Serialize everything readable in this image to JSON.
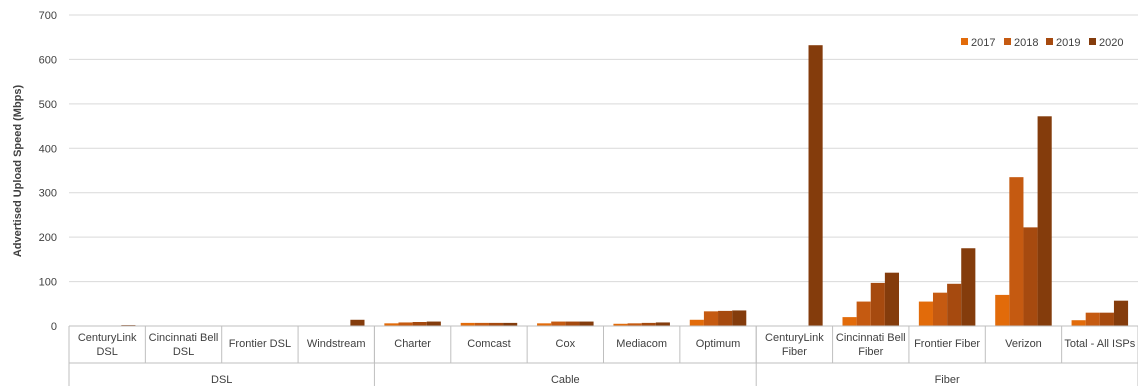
{
  "chart_data": {
    "type": "bar",
    "ylabel": "Advertised Upload Speed (Mbps)",
    "ylim": [
      0,
      700
    ],
    "yticks": [
      0,
      100,
      200,
      300,
      400,
      500,
      600,
      700
    ],
    "grid": true,
    "legend_position": "top-right",
    "categories": [
      "CenturyLink DSL",
      "Cincinnati Bell DSL",
      "Frontier DSL",
      "Windstream",
      "Charter",
      "Comcast",
      "Cox",
      "Mediacom",
      "Optimum",
      "CenturyLink Fiber",
      "Cincinnati Bell Fiber",
      "Frontier Fiber",
      "Verizon",
      "Total - All ISPs"
    ],
    "category_lines": [
      [
        "CenturyLink",
        "DSL"
      ],
      [
        "Cincinnati Bell",
        "DSL"
      ],
      [
        "Frontier DSL"
      ],
      [
        "Windstream"
      ],
      [
        "Charter"
      ],
      [
        "Comcast"
      ],
      [
        "Cox"
      ],
      [
        "Mediacom"
      ],
      [
        "Optimum"
      ],
      [
        "CenturyLink",
        "Fiber"
      ],
      [
        "Cincinnati Bell",
        "Fiber"
      ],
      [
        "Frontier Fiber"
      ],
      [
        "Verizon"
      ],
      [
        "Total - All ISPs"
      ]
    ],
    "groups": [
      {
        "label": "DSL",
        "count": 4
      },
      {
        "label": "Cable",
        "count": 5
      },
      {
        "label": "Fiber",
        "count": 5
      }
    ],
    "series": [
      {
        "name": "2017",
        "color": "#E26B0A",
        "values": [
          1,
          1,
          1,
          1,
          6,
          7,
          6,
          5,
          14,
          0,
          20,
          55,
          70,
          13
        ]
      },
      {
        "name": "2018",
        "color": "#C55A11",
        "values": [
          1,
          1,
          1,
          1,
          8,
          7,
          10,
          6,
          33,
          0,
          55,
          75,
          335,
          30
        ]
      },
      {
        "name": "2019",
        "color": "#A64A0F",
        "values": [
          1,
          1,
          1,
          1,
          9,
          7,
          10,
          7,
          34,
          0,
          97,
          95,
          222,
          30
        ]
      },
      {
        "name": "2020",
        "color": "#843C0C",
        "values": [
          2,
          1,
          1,
          14,
          10,
          7,
          10,
          8,
          35,
          632,
          120,
          175,
          472,
          57
        ]
      }
    ]
  }
}
